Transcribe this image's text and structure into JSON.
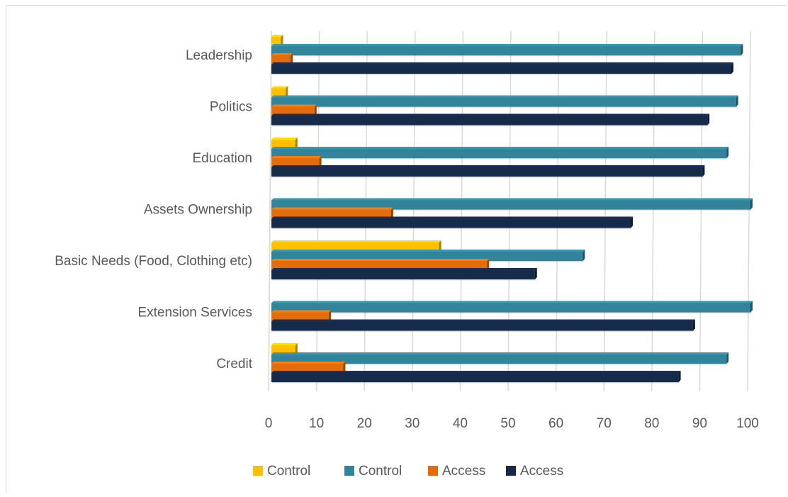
{
  "chart_data": {
    "type": "bar",
    "orientation": "horizontal",
    "categories": [
      "Leadership",
      "Politics",
      "Education",
      "Assets Ownership",
      "Basic Needs (Food, Clothing etc)",
      "Extension Services",
      "Credit"
    ],
    "series": [
      {
        "name": "Control",
        "color": "#ffc000",
        "values": [
          2,
          3,
          5,
          0,
          35,
          0,
          5
        ]
      },
      {
        "name": "Control",
        "color": "#31849b",
        "values": [
          98,
          97,
          95,
          100,
          65,
          100,
          95
        ]
      },
      {
        "name": "Access",
        "color": "#e36c09",
        "values": [
          4,
          9,
          10,
          25,
          45,
          12,
          15
        ]
      },
      {
        "name": "Access",
        "color": "#17294a",
        "values": [
          96,
          91,
          90,
          75,
          55,
          88,
          85
        ]
      }
    ],
    "x_ticks": [
      "0",
      "10",
      "20",
      "30",
      "40",
      "50",
      "60",
      "70",
      "80",
      "90",
      "100"
    ],
    "xlim": [
      0,
      100
    ],
    "grid": true,
    "legend_position": "bottom",
    "title": "",
    "xlabel": "",
    "ylabel": ""
  }
}
